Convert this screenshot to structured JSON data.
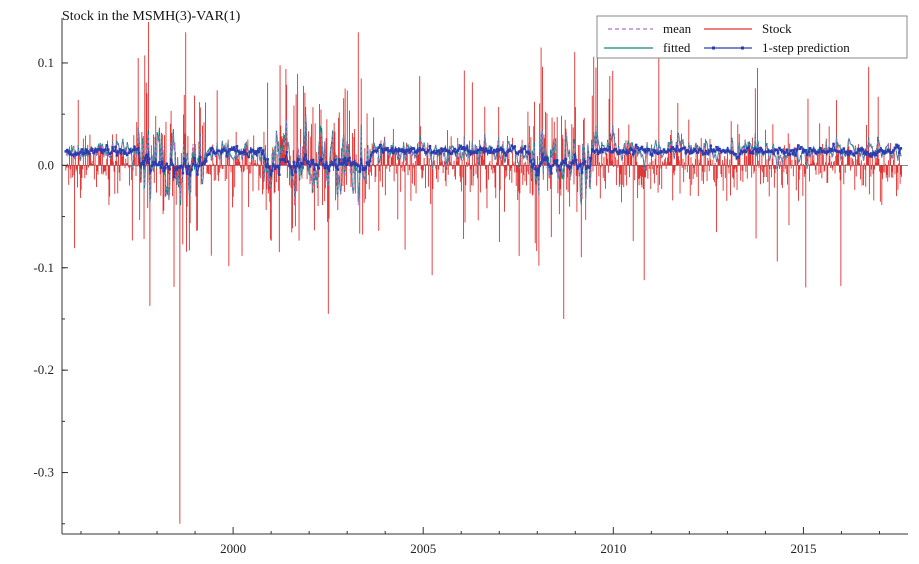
{
  "chart_data": {
    "type": "line",
    "title": "Stock in the MSMH(3)-VAR(1)",
    "xlabel": "",
    "ylabel": "",
    "xlim": [
      1995.5,
      2017.75
    ],
    "ylim": [
      -0.36,
      0.14
    ],
    "x_ticks": [
      2000,
      2005,
      2010,
      2015
    ],
    "y_ticks": [
      0.1,
      0.0,
      -0.1,
      -0.2,
      -0.3
    ],
    "y_tick_labels": [
      "0.1",
      "0.0",
      "-0.1",
      "-0.2",
      "-0.3"
    ],
    "legend_position": "top-right",
    "grid": false,
    "series": [
      {
        "name": "mean",
        "style": "dashed",
        "color": "#b070c8"
      },
      {
        "name": "Stock",
        "style": "spikes",
        "color": "#e03030"
      },
      {
        "name": "fitted",
        "style": "line",
        "color": "#0a8a7a"
      },
      {
        "name": "1-step prediction",
        "style": "line-markers",
        "color": "#2a3cb0"
      }
    ],
    "sampling": {
      "start": 1995.6,
      "end": 2017.6,
      "frequency_per_year": 52
    },
    "stock_extremes": [
      {
        "x": 1998.6,
        "y": -0.35
      },
      {
        "x": 1998.75,
        "y": 0.13
      },
      {
        "x": 2003.3,
        "y": 0.13
      },
      {
        "x": 2002.5,
        "y": -0.145
      },
      {
        "x": 2008.7,
        "y": -0.15
      },
      {
        "x": 2008.1,
        "y": 0.115
      }
    ]
  }
}
